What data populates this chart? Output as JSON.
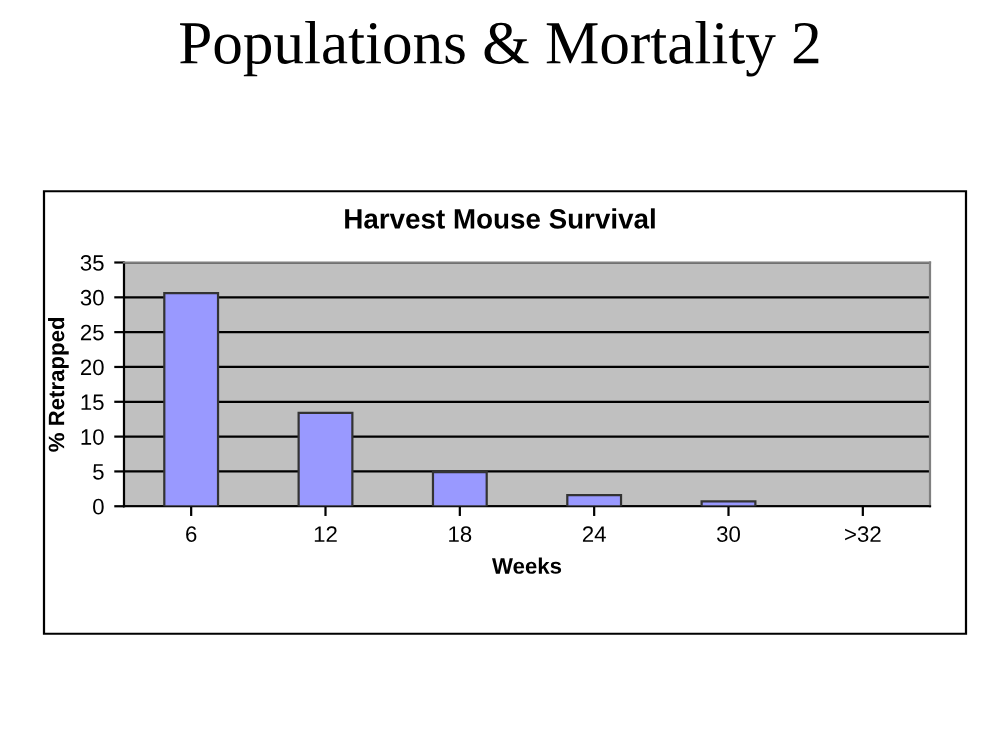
{
  "chart_data": {
    "type": "bar",
    "title": "Populations & Mortality 2",
    "subtitle": "Harvest Mouse Survival",
    "xlabel": "Weeks",
    "ylabel": "% Retrapped",
    "categories": [
      "6",
      "12",
      "18",
      "24",
      "30",
      ">32"
    ],
    "values": [
      30.6,
      13.4,
      4.9,
      1.6,
      0.7,
      null
    ],
    "color": "#9999ff",
    "ylim": [
      0,
      35
    ],
    "yticks": [
      0,
      5,
      10,
      15,
      20,
      25,
      30,
      35
    ],
    "grid": "y",
    "legend": false
  }
}
